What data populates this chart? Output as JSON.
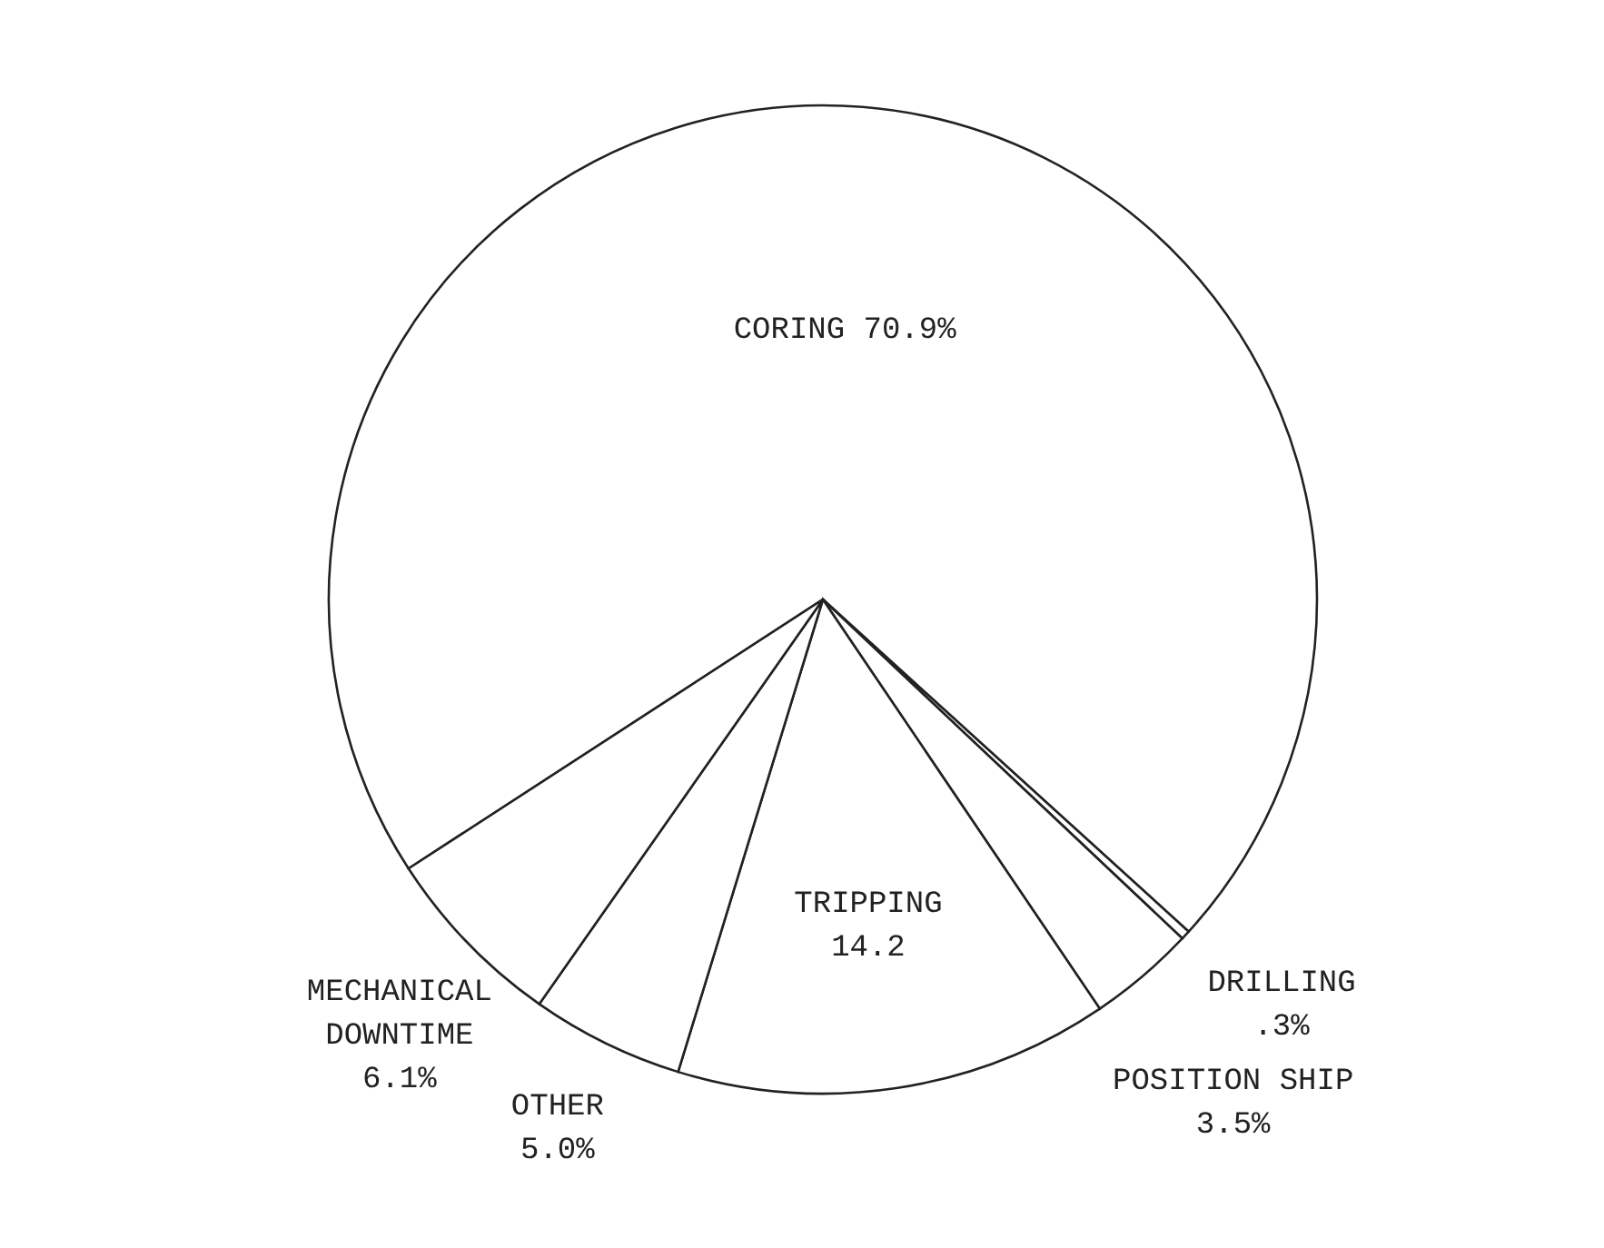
{
  "chart_data": {
    "type": "pie",
    "categories": [
      "CORING",
      "DRILLING",
      "POSITION SHIP",
      "TRIPPING",
      "OTHER",
      "MECHANICAL DOWNTIME"
    ],
    "values": [
      70.9,
      0.3,
      3.5,
      14.2,
      5.0,
      6.1
    ],
    "colors": [
      "#ffffff",
      "#ffffff",
      "#ffffff",
      "#ffffff",
      "#ffffff",
      "#ffffff"
    ],
    "value_labels": [
      "70.9%",
      ".3%",
      "3.5%",
      "14.2",
      "5.0%",
      "6.1%"
    ]
  }
}
